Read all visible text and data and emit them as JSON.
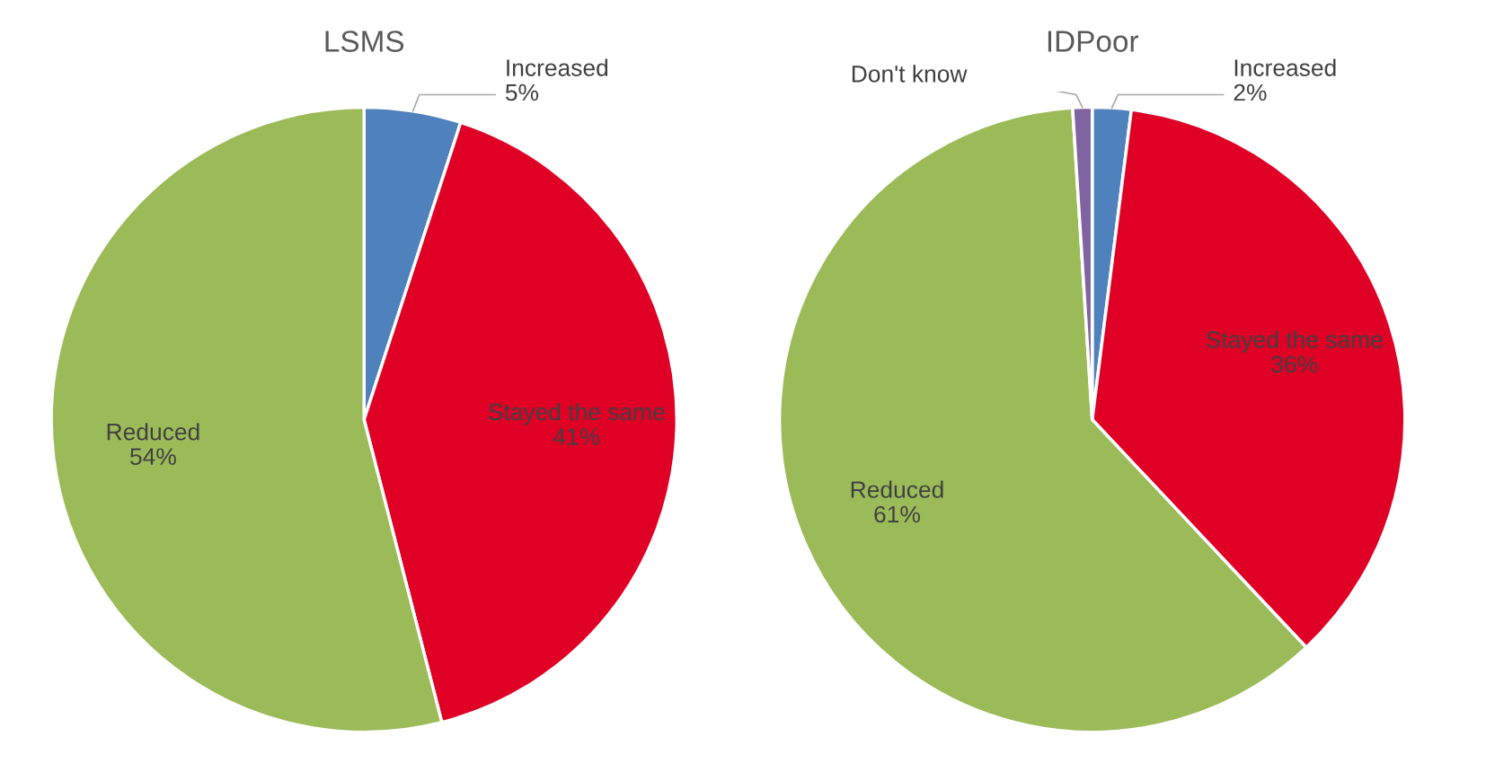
{
  "chart_data": [
    {
      "type": "pie",
      "title": "LSMS",
      "categories": [
        "Increased",
        "Stayed the same",
        "Reduced"
      ],
      "values": [
        5,
        41,
        54
      ],
      "colors": [
        "#4f81bd",
        "#e00025",
        "#9bbb59"
      ],
      "value_labels": [
        "5%",
        "41%",
        "54%"
      ]
    },
    {
      "type": "pie",
      "title": "IDPoor",
      "categories": [
        "Increased",
        "Stayed the same",
        "Reduced",
        "Don't know"
      ],
      "values": [
        2,
        36,
        61,
        1
      ],
      "colors": [
        "#4f81bd",
        "#e00025",
        "#9bbb59",
        "#8064a2"
      ],
      "value_labels": [
        "2%",
        "36%",
        "61%",
        null
      ]
    }
  ]
}
